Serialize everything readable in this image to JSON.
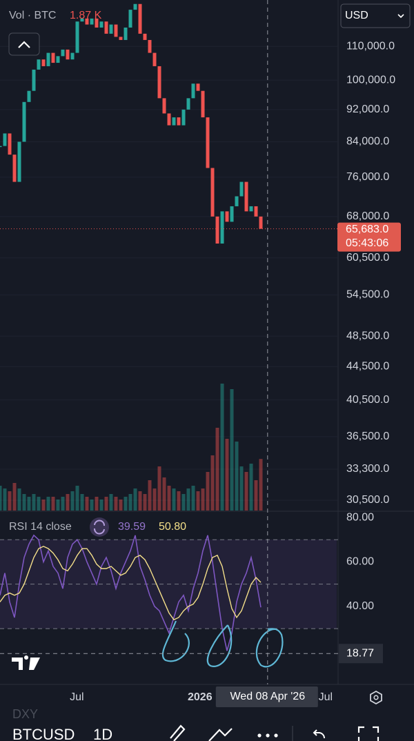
{
  "ui": {
    "currency": "USD",
    "ghost_symbol": "DXY",
    "symbol": "BTCUSD",
    "interval": "1D"
  },
  "chart_data": [
    {
      "type": "candlestick",
      "log_scale": true,
      "ylim": [
        29620,
        125400
      ],
      "yticks": [
        {
          "value": 110000,
          "label": "110,000.0"
        },
        {
          "value": 100000,
          "label": "100,000.0"
        },
        {
          "value": 92000,
          "label": "92,000.0"
        },
        {
          "value": 84000,
          "label": "84,000.0"
        },
        {
          "value": 76000,
          "label": "76,000.0"
        },
        {
          "value": 68000,
          "label": "68,000.0"
        },
        {
          "value": 60500,
          "label": "60,500.0"
        },
        {
          "value": 54500,
          "label": "54,500.0"
        },
        {
          "value": 48500,
          "label": "48,500.0"
        },
        {
          "value": 44500,
          "label": "44,500.0"
        },
        {
          "value": 40500,
          "label": "40,500.0"
        },
        {
          "value": 36500,
          "label": "36,500.0"
        },
        {
          "value": 33300,
          "label": "33,300.0"
        },
        {
          "value": 30500,
          "label": "30,500.0"
        }
      ],
      "xlim": [
        0,
        70
      ],
      "up_color": "#26a69a",
      "down_color": "#ef5350",
      "values": [
        83000,
        86000,
        81000,
        75000,
        84000,
        94000,
        97000,
        103000,
        106000,
        104000,
        108000,
        105000,
        107000,
        109000,
        106000,
        108000,
        118000,
        119000,
        117000,
        119000,
        116000,
        118000,
        114000,
        117000,
        113000,
        112000,
        116000,
        122000,
        124000,
        114000,
        112000,
        108000,
        104000,
        95000,
        91000,
        88000,
        90000,
        88000,
        92000,
        95000,
        99000,
        97000,
        90000,
        78000,
        68000,
        63000,
        69000,
        67000,
        70000,
        72000,
        75000,
        69000,
        70000,
        68000,
        65683
      ],
      "last_price": {
        "value": 65683,
        "label": "65,683.0"
      },
      "countdown": "05:43:06",
      "volume": {
        "name": "Vol · BTC",
        "values": [
          0.9,
          0.8,
          0.7,
          1.0,
          0.8,
          0.6,
          0.5,
          0.6,
          0.5,
          0.4,
          0.5,
          0.5,
          0.4,
          0.5,
          0.6,
          0.7,
          0.9,
          0.6,
          0.5,
          0.4,
          0.5,
          0.4,
          0.5,
          0.6,
          0.5,
          0.4,
          0.5,
          0.6,
          0.8,
          0.7,
          0.6,
          1.1,
          0.8,
          1.6,
          1.2,
          0.9,
          0.8,
          0.7,
          0.6,
          0.8,
          0.9,
          0.7,
          0.8,
          1.4,
          2.0,
          3.0,
          4.6,
          2.6,
          4.4,
          2.5,
          1.6,
          1.4,
          1.7,
          1.1,
          1.87
        ],
        "last_label": "1.87 K"
      }
    },
    {
      "type": "line",
      "title": "RSI 14 close",
      "ylim": [
        5.5,
        82.5
      ],
      "yticks": [
        {
          "value": 80,
          "label": "80.00"
        },
        {
          "value": 60,
          "label": "60.00"
        },
        {
          "value": 40,
          "label": "40.00"
        }
      ],
      "levels": [
        70,
        50,
        30
      ],
      "xlim": [
        0,
        70
      ],
      "xticks": [
        {
          "value": 15.9,
          "label": "Jul"
        },
        {
          "value": 41.4,
          "label": "2026"
        },
        {
          "value": 67.4,
          "label": "Jul"
        }
      ],
      "crosshair_x": {
        "value": 55.4,
        "label": "Wed 08 Apr '26"
      },
      "crosshair_y": 18.77,
      "series": [
        {
          "color": "#7e57c2",
          "values": [
            45,
            55,
            42,
            35,
            50,
            62,
            68,
            72,
            70,
            60,
            65,
            58,
            55,
            48,
            62,
            68,
            70,
            66,
            60,
            55,
            50,
            58,
            62,
            56,
            48,
            55,
            60,
            65,
            72,
            58,
            52,
            45,
            40,
            38,
            33,
            28,
            35,
            42,
            45,
            38,
            48,
            55,
            65,
            72,
            60,
            45,
            30,
            20,
            28,
            42,
            50,
            55,
            62,
            52,
            39.59
          ]
        },
        {
          "color": "#f5e08a",
          "values": [
            42,
            45,
            46,
            45,
            46,
            50,
            56,
            62,
            66,
            67,
            66,
            64,
            61,
            57,
            56,
            59,
            63,
            66,
            66,
            63,
            59,
            57,
            57,
            58,
            56,
            54,
            55,
            58,
            62,
            63,
            61,
            57,
            52,
            47,
            42,
            37,
            34,
            35,
            38,
            40,
            41,
            44,
            50,
            57,
            62,
            63,
            58,
            48,
            39,
            35,
            38,
            44,
            50,
            53,
            50.8
          ],
          "last_label": "50.80"
        }
      ]
    }
  ]
}
